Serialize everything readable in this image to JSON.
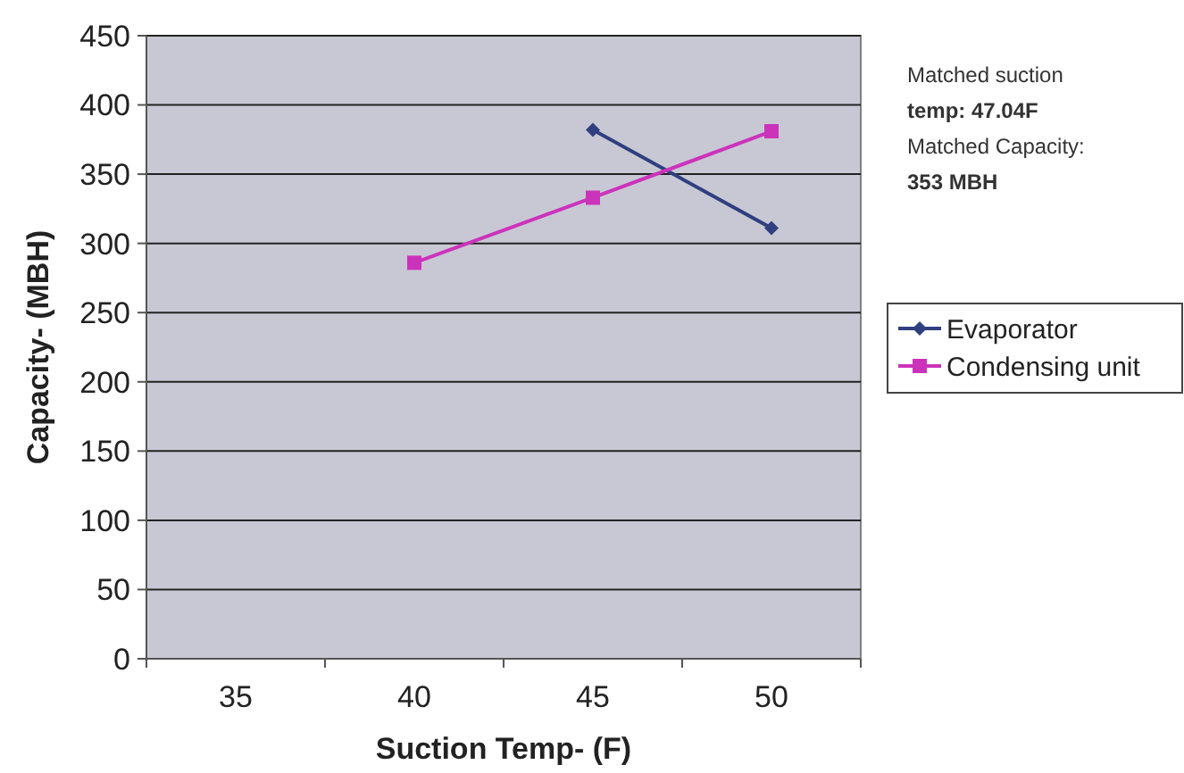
{
  "chart_data": {
    "type": "line",
    "xlabel": "Suction Temp- (F)",
    "ylabel": "Capacity- (MBH)",
    "categories": [
      "35",
      "40",
      "45",
      "50"
    ],
    "series": [
      {
        "name": "Evaporator",
        "color": "#2f3f7f",
        "marker": "diamond",
        "values": [
          null,
          null,
          382,
          311
        ]
      },
      {
        "name": "Condensing unit",
        "color": "#cc33bb",
        "marker": "square",
        "values": [
          null,
          286,
          333,
          381
        ]
      }
    ],
    "ylim": [
      0,
      450
    ],
    "yticks": [
      0,
      50,
      100,
      150,
      200,
      250,
      300,
      350,
      400,
      450
    ],
    "grid": "y",
    "legend": "right",
    "annotations": [
      "Matched suction",
      "temp: 47.04F",
      "Matched Capacity:",
      "353 MBH"
    ]
  }
}
